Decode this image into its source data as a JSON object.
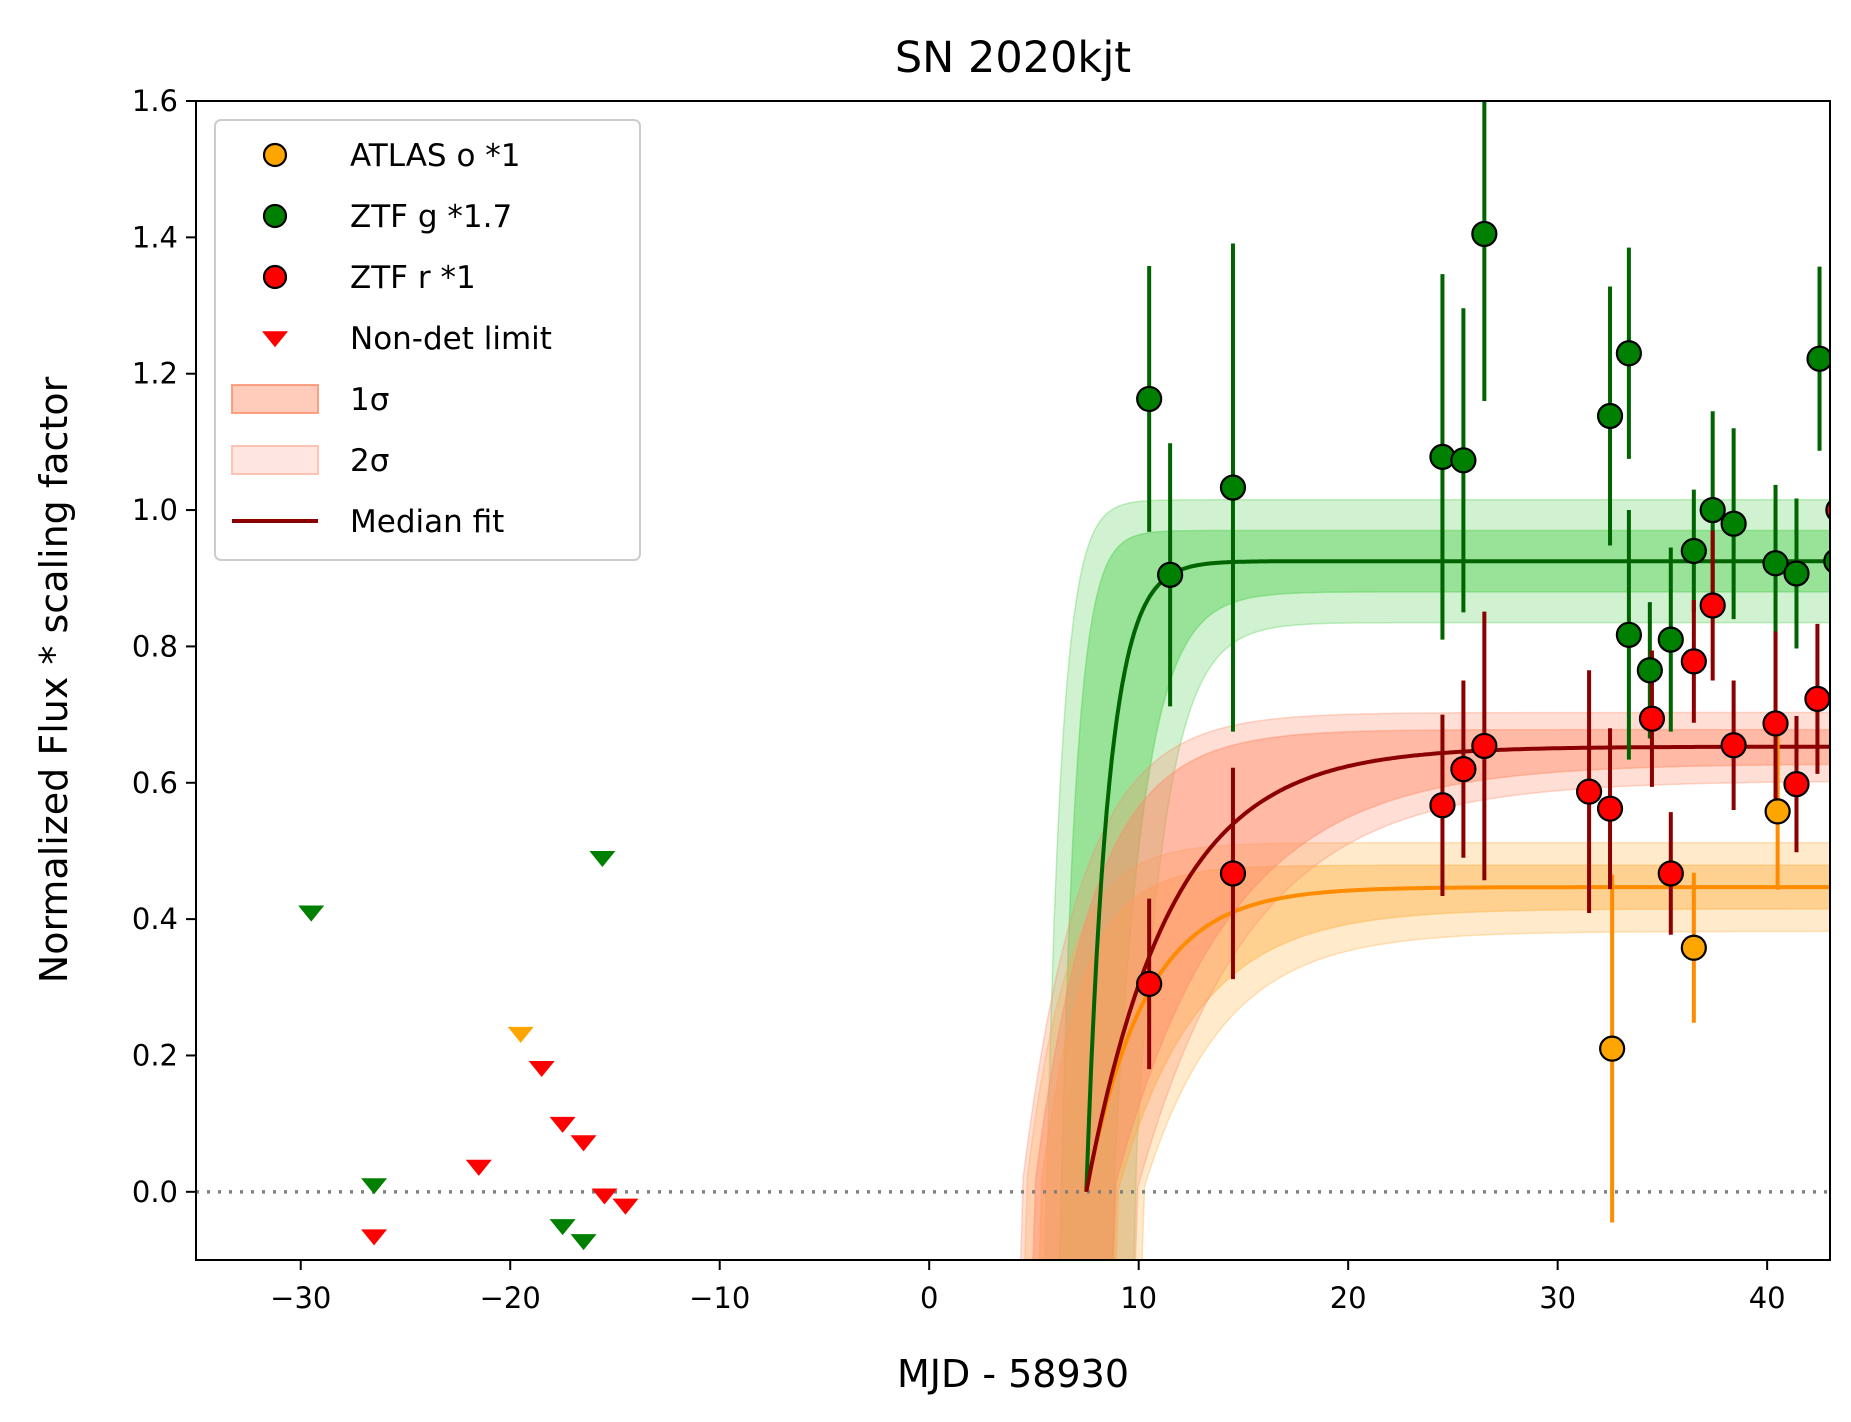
{
  "chart_data": {
    "type": "scatter",
    "title": "SN 2020kjt",
    "xlabel": "MJD - 58930",
    "ylabel": "Normalized Flux * scaling factor",
    "xlim": [
      -35,
      43
    ],
    "ylim": [
      -0.1,
      1.6
    ],
    "x_ticks": [
      -30,
      -20,
      -10,
      0,
      10,
      20,
      30,
      40
    ],
    "y_ticks": [
      0.0,
      0.2,
      0.4,
      0.6,
      0.8,
      1.0,
      1.2,
      1.4,
      1.6
    ],
    "x_tick_labels": [
      "−30",
      "−20",
      "−10",
      "0",
      "10",
      "20",
      "30",
      "40"
    ],
    "y_tick_labels": [
      "0.0",
      "0.2",
      "0.4",
      "0.6",
      "0.8",
      "1.0",
      "1.2",
      "1.4",
      "1.6"
    ],
    "zero_line": {
      "y": 0.0,
      "style": "dotted",
      "color": "#808080"
    },
    "grid": false,
    "legend_position": "upper-left",
    "legend": [
      {
        "label": "ATLAS o *1",
        "kind": "circle",
        "color": "#ffa500"
      },
      {
        "label": "ZTF g *1.7",
        "kind": "circle",
        "color": "#008000"
      },
      {
        "label": "ZTF r *1",
        "kind": "circle",
        "color": "#ff0000"
      },
      {
        "label": "Non-det limit",
        "kind": "triangle",
        "color": "#ff0000"
      },
      {
        "label": "1σ",
        "kind": "band",
        "color": "#ff8c69",
        "opacity": 0.45
      },
      {
        "label": "2σ",
        "kind": "band",
        "color": "#ffb6a6",
        "opacity": 0.35
      },
      {
        "label": "Median fit",
        "kind": "line",
        "color": "#8b0000"
      }
    ],
    "series": [
      {
        "name": "ATLAS o *1",
        "color": "#ffa500",
        "errcolor": "#ff8c00",
        "points": [
          {
            "x": 32.6,
            "y": 0.21,
            "err": 0.255
          },
          {
            "x": 36.5,
            "y": 0.358,
            "err": 0.11
          },
          {
            "x": 40.5,
            "y": 0.558,
            "err": 0.115
          }
        ]
      },
      {
        "name": "ZTF g *1.7",
        "color": "#008000",
        "errcolor": "#006400",
        "points": [
          {
            "x": 10.5,
            "y": 1.163,
            "err": 0.195
          },
          {
            "x": 11.5,
            "y": 0.905,
            "err": 0.193
          },
          {
            "x": 14.5,
            "y": 1.033,
            "err": 0.358
          },
          {
            "x": 24.5,
            "y": 1.078,
            "err": 0.268
          },
          {
            "x": 25.5,
            "y": 1.073,
            "err": 0.223
          },
          {
            "x": 26.5,
            "y": 1.405,
            "err": 0.245
          },
          {
            "x": 32.5,
            "y": 1.138,
            "err": 0.19
          },
          {
            "x": 33.4,
            "y": 1.23,
            "err": 0.155
          },
          {
            "x": 33.4,
            "y": 0.817,
            "err": 0.183
          },
          {
            "x": 34.4,
            "y": 0.765,
            "err": 0.1
          },
          {
            "x": 35.4,
            "y": 0.81,
            "err": 0.135
          },
          {
            "x": 36.5,
            "y": 0.94,
            "err": 0.09
          },
          {
            "x": 37.4,
            "y": 1.0,
            "err": 0.145
          },
          {
            "x": 38.4,
            "y": 0.98,
            "err": 0.14
          },
          {
            "x": 40.4,
            "y": 0.922,
            "err": 0.115
          },
          {
            "x": 41.4,
            "y": 0.907,
            "err": 0.11
          },
          {
            "x": 42.5,
            "y": 1.222,
            "err": 0.135
          },
          {
            "x": 43.3,
            "y": 0.925,
            "err": 0.13
          }
        ]
      },
      {
        "name": "ZTF r *1",
        "color": "#ff0000",
        "errcolor": "#8b0000",
        "points": [
          {
            "x": 10.5,
            "y": 0.305,
            "err": 0.125
          },
          {
            "x": 14.5,
            "y": 0.467,
            "err": 0.155
          },
          {
            "x": 24.5,
            "y": 0.567,
            "err": 0.133
          },
          {
            "x": 25.5,
            "y": 0.62,
            "err": 0.13
          },
          {
            "x": 26.5,
            "y": 0.654,
            "err": 0.197
          },
          {
            "x": 31.5,
            "y": 0.587,
            "err": 0.178
          },
          {
            "x": 32.5,
            "y": 0.562,
            "err": 0.118
          },
          {
            "x": 34.5,
            "y": 0.694,
            "err": 0.1
          },
          {
            "x": 35.4,
            "y": 0.467,
            "err": 0.09
          },
          {
            "x": 36.5,
            "y": 0.778,
            "err": 0.09
          },
          {
            "x": 37.4,
            "y": 0.86,
            "err": 0.11
          },
          {
            "x": 38.4,
            "y": 0.655,
            "err": 0.095
          },
          {
            "x": 40.4,
            "y": 0.687,
            "err": 0.135
          },
          {
            "x": 41.4,
            "y": 0.598,
            "err": 0.1
          },
          {
            "x": 42.4,
            "y": 0.723,
            "err": 0.11
          },
          {
            "x": 43.4,
            "y": 1.0,
            "err": 0.09
          }
        ]
      }
    ],
    "non_detections": [
      {
        "x": -29.5,
        "y": 0.41,
        "color": "#008000"
      },
      {
        "x": -26.5,
        "y": 0.01,
        "color": "#008000"
      },
      {
        "x": -17.5,
        "y": -0.05,
        "color": "#008000"
      },
      {
        "x": -16.5,
        "y": -0.072,
        "color": "#008000"
      },
      {
        "x": -15.6,
        "y": 0.49,
        "color": "#008000"
      },
      {
        "x": -19.5,
        "y": 0.232,
        "color": "#ffa500"
      },
      {
        "x": -26.5,
        "y": -0.065,
        "color": "#ff0000"
      },
      {
        "x": -21.5,
        "y": 0.037,
        "color": "#ff0000"
      },
      {
        "x": -18.5,
        "y": 0.182,
        "color": "#ff0000"
      },
      {
        "x": -17.5,
        "y": 0.1,
        "color": "#ff0000"
      },
      {
        "x": -16.5,
        "y": 0.073,
        "color": "#ff0000"
      },
      {
        "x": -15.5,
        "y": -0.005,
        "color": "#ff0000"
      },
      {
        "x": -14.5,
        "y": -0.02,
        "color": "#ff0000"
      }
    ],
    "fits": [
      {
        "band": "ZTF g",
        "line_color": "#006400",
        "band_color": "#55d155",
        "t0": 7.5,
        "A": 0.925,
        "tau": 1.05,
        "sigma1": 0.045,
        "sigma2": 0.09,
        "t0_band_1": [
          6.3,
          8.8
        ],
        "t0_band_2": [
          5.6,
          9.8
        ]
      },
      {
        "band": "ATLAS o",
        "line_color": "#ff8c00",
        "band_color": "#ffb347",
        "t0": 7.5,
        "A": 0.447,
        "tau": 2.8,
        "sigma1": 0.032,
        "sigma2": 0.065,
        "t0_band_1": [
          5.3,
          9.0
        ],
        "t0_band_2": [
          4.6,
          10.2
        ]
      },
      {
        "band": "ZTF r",
        "line_color": "#8b0000",
        "band_color": "#ff8c69",
        "t0": 7.5,
        "A": 0.653,
        "tau": 4.0,
        "sigma1": 0.025,
        "sigma2": 0.05,
        "t0_band_1": [
          5.0,
          8.8
        ],
        "t0_band_2": [
          4.4,
          9.9
        ]
      }
    ]
  }
}
